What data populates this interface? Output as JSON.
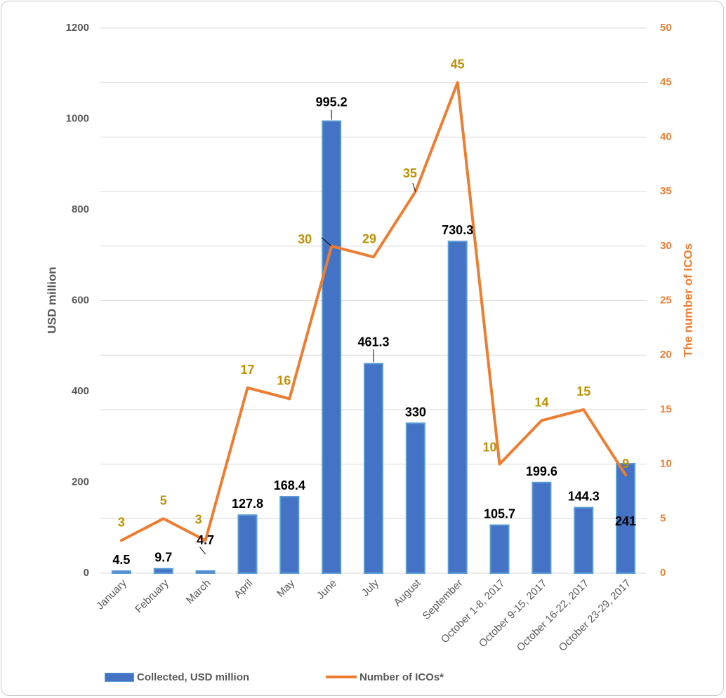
{
  "chart_data": {
    "type": "bar",
    "categories": [
      "January",
      "February",
      "March",
      "April",
      "May",
      "June",
      "July",
      "August",
      "September",
      "October 1-8, 2017",
      "October 9-15, 2017",
      "October 16-22, 2017",
      "October 23-29, 2017"
    ],
    "series": [
      {
        "name": "Collected, USD million",
        "type": "bar",
        "axis": "left",
        "values": [
          4.5,
          9.7,
          4.7,
          127.8,
          168.4,
          995.2,
          461.3,
          330,
          730.3,
          105.7,
          199.6,
          144.3,
          241
        ],
        "labels": [
          "4.5",
          "9.7",
          "4.7",
          "127.8",
          "168.4",
          "995.2",
          "461.3",
          "330",
          "730.3",
          "105.7",
          "199.6",
          "144.3",
          "241"
        ]
      },
      {
        "name": "Number of ICOs*",
        "type": "line",
        "axis": "right",
        "values": [
          3,
          5,
          3,
          17,
          16,
          30,
          29,
          35,
          45,
          10,
          14,
          15,
          9
        ],
        "labels": [
          "3",
          "5",
          "3",
          "17",
          "16",
          "30",
          "29",
          "35",
          "45",
          "10",
          "14",
          "15",
          "9"
        ]
      }
    ],
    "ylabel": "USD million",
    "y2label": "The number of ICOs",
    "ylim": [
      0,
      1200
    ],
    "y2lim": [
      0,
      50
    ],
    "yticks": [
      "0",
      "200",
      "400",
      "600",
      "800",
      "1000",
      "1200"
    ],
    "y2ticks": [
      "0",
      "5",
      "10",
      "15",
      "20",
      "25",
      "30",
      "35",
      "40",
      "45",
      "50"
    ],
    "grid": true,
    "legend": "bottom",
    "colors": {
      "bar_fill": "#4472C4",
      "bar_edge": "#5B9BD5",
      "line": "#ED7D31",
      "line_labels": "#BF9000",
      "right_axis": "#ED7D31",
      "grid": "#d9d9d9"
    }
  }
}
